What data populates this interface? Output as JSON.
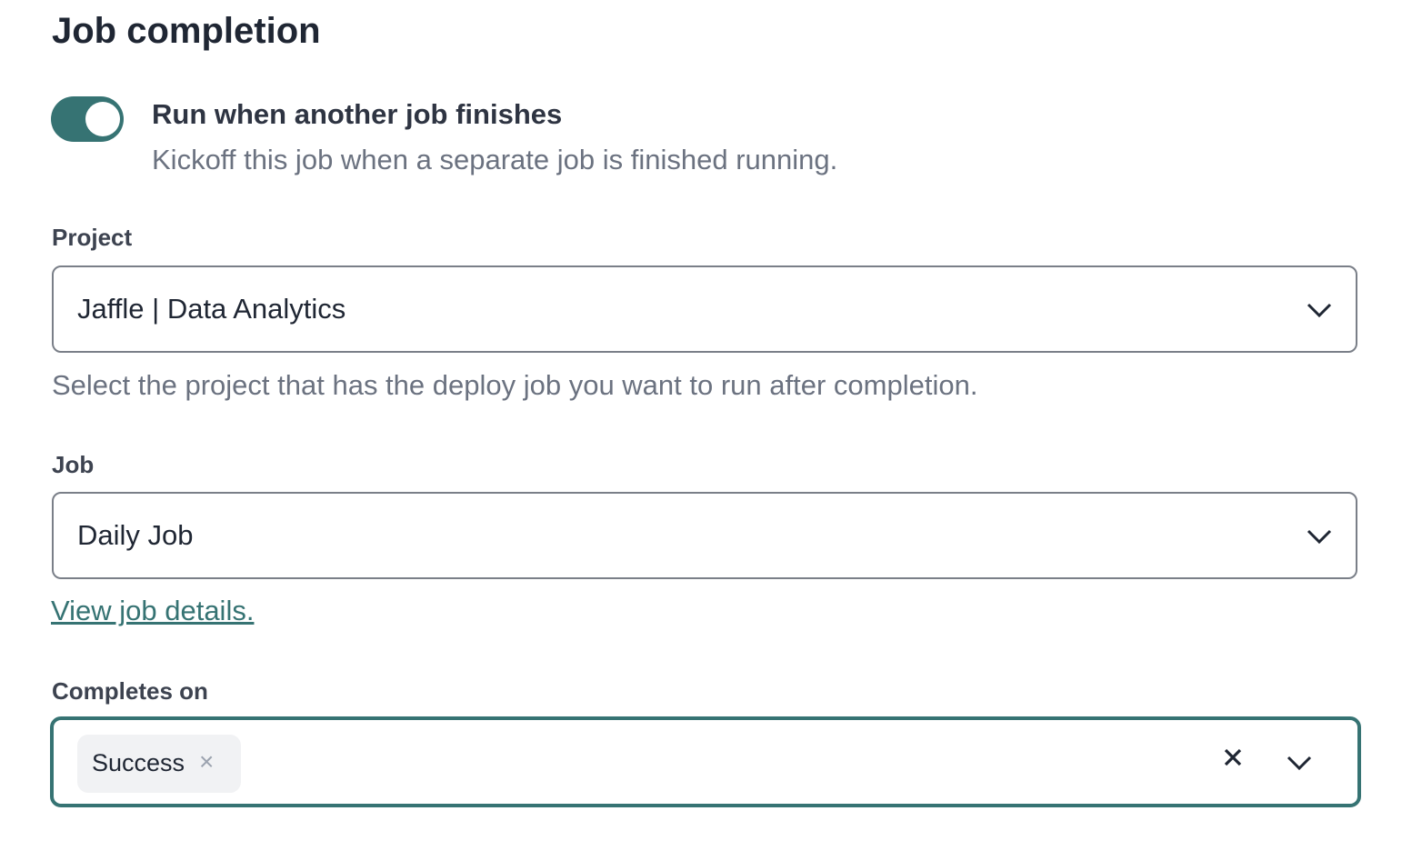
{
  "section_title": "Job completion",
  "toggle": {
    "label": "Run when another job finishes",
    "description": "Kickoff this job when a separate job is finished running.",
    "on": true,
    "color": "#367373"
  },
  "project": {
    "label": "Project",
    "value": "Jaffle | Data Analytics",
    "help": "Select the project that has the deploy job you want to run after completion."
  },
  "job": {
    "label": "Job",
    "value": "Daily Job",
    "link": "View job details."
  },
  "completes_on": {
    "label": "Completes on",
    "chips": [
      {
        "label": "Success"
      }
    ],
    "chip_remove_glyph": "×"
  }
}
